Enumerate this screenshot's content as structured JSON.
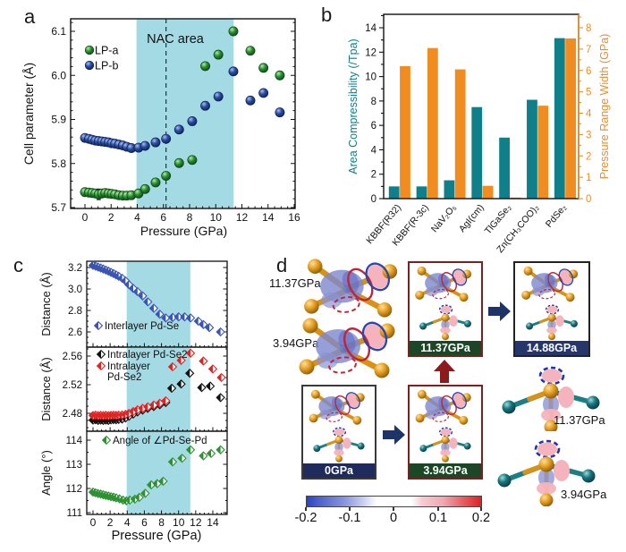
{
  "panel_letters": {
    "a": "a",
    "b": "b",
    "c": "c",
    "d": "d"
  },
  "chart_data": [
    {
      "id": "a",
      "type": "scatter",
      "annotation": "NAC area",
      "xlabel": "Pressure (GPa)",
      "ylabel": "Cell parameter (Å)",
      "xticks": [
        0,
        2,
        4,
        6,
        8,
        10,
        12,
        14,
        16
      ],
      "yticks": [
        "5.7",
        "5.8",
        "5.9",
        "6.0",
        "6.1"
      ],
      "xlim": [
        -1.1,
        16.1
      ],
      "ylim": [
        5.695,
        6.13
      ],
      "band_x": [
        3.94,
        11.37
      ],
      "band_color": "#a3dae3",
      "dashed_x": 6.2,
      "legend_position": "upper-left",
      "series": [
        {
          "name": "LP-a",
          "color": "#2e9133",
          "edge": "#0d4716",
          "grad": "gLPa",
          "points": [
            [
              0,
              5.735
            ],
            [
              0.3,
              5.734
            ],
            [
              0.55,
              5.733
            ],
            [
              0.8,
              5.732
            ],
            [
              1.05,
              5.73,
              0.012
            ],
            [
              1.3,
              5.732
            ],
            [
              1.55,
              5.733
            ],
            [
              1.8,
              5.732
            ],
            [
              2.05,
              5.731
            ],
            [
              2.3,
              5.73
            ],
            [
              2.6,
              5.728
            ],
            [
              2.9,
              5.727
            ],
            [
              3.2,
              5.727
            ],
            [
              3.55,
              5.728
            ],
            [
              4.1,
              5.732
            ],
            [
              4.6,
              5.742
            ],
            [
              5.4,
              5.757
            ],
            [
              6.2,
              5.772
            ],
            [
              7.2,
              5.801
            ],
            [
              8.2,
              5.808
            ],
            [
              9.2,
              6.021
            ],
            [
              10.2,
              6.047
            ],
            [
              11.35,
              6.1
            ],
            [
              12.65,
              6.056
            ],
            [
              13.65,
              6.017
            ],
            [
              14.9,
              6.0
            ]
          ]
        },
        {
          "name": "LP-b",
          "color": "#2c4fa3",
          "edge": "#0e2258",
          "grad": "gLPb",
          "points": [
            [
              0,
              5.858
            ],
            [
              0.3,
              5.856
            ],
            [
              0.55,
              5.854
            ],
            [
              0.8,
              5.852
            ],
            [
              1.05,
              5.851
            ],
            [
              1.3,
              5.85
            ],
            [
              1.55,
              5.849
            ],
            [
              1.8,
              5.848
            ],
            [
              2.05,
              5.846
            ],
            [
              2.3,
              5.845
            ],
            [
              2.6,
              5.843
            ],
            [
              2.9,
              5.841
            ],
            [
              3.2,
              5.838
            ],
            [
              3.55,
              5.835
            ],
            [
              4.1,
              5.836
            ],
            [
              4.6,
              5.84
            ],
            [
              5.4,
              5.848
            ],
            [
              6.2,
              5.856
            ],
            [
              7.2,
              5.877
            ],
            [
              8.2,
              5.896
            ],
            [
              9.2,
              5.931
            ],
            [
              10.2,
              5.952
            ],
            [
              11.35,
              6.009
            ],
            [
              12.65,
              5.943
            ],
            [
              13.65,
              5.96
            ],
            [
              14.9,
              5.916
            ]
          ]
        }
      ]
    },
    {
      "id": "b",
      "type": "bar",
      "categories": [
        "KBBF(R32)",
        "KBBF(R-3c)",
        "NaV₂O₅",
        "AgI(cm)",
        "TlGaSe₂",
        "Zn(CH₃COO)₂",
        "PdSe₂"
      ],
      "series": [
        {
          "name": "Area Compressibility (/Tpa)",
          "axis": "left",
          "color": "#0f7f8a",
          "values": [
            1.0,
            1.0,
            1.5,
            7.5,
            5.0,
            8.1,
            13.15
          ]
        },
        {
          "name": "Pressure Range Width (GPa)",
          "axis": "right",
          "color": "#f18c21",
          "values": [
            6.2,
            7.05,
            6.05,
            0.6,
            0.05,
            4.35,
            7.5
          ]
        }
      ],
      "left_axis": {
        "label": "Area Compressibility (/Tpa)",
        "ticks": [
          0,
          2,
          4,
          6,
          8,
          10,
          12,
          14
        ],
        "lim": [
          0,
          15.1
        ]
      },
      "right_axis": {
        "label": "Pressure Range Width (GPa)",
        "ticks": [
          0,
          1,
          2,
          3,
          4,
          5,
          6,
          7,
          8
        ],
        "lim": [
          0,
          8.63
        ]
      },
      "grid": false,
      "legend_position": "none"
    },
    {
      "id": "c",
      "type": "scatter-stack",
      "xlabel": "Pressure (GPa)",
      "xticks": [
        0,
        2,
        4,
        6,
        8,
        10,
        12,
        14
      ],
      "xlim": [
        -0.75,
        15.7
      ],
      "band_x": [
        3.94,
        11.37
      ],
      "band_color": "#a3dae3",
      "subplots": [
        {
          "ylabel": "Distance (Å)",
          "yticks": [
            "3.2",
            "3.0",
            "2.8",
            "2.6"
          ],
          "ylim": [
            2.458,
            3.258
          ],
          "series": [
            {
              "name": "Interlayer Pd-Se",
              "color": "#3a55b4",
              "points": [
                [
                  0,
                  3.22
                ],
                [
                  0.3,
                  3.212
                ],
                [
                  0.6,
                  3.204
                ],
                [
                  0.9,
                  3.195
                ],
                [
                  1.2,
                  3.186
                ],
                [
                  1.5,
                  3.176
                ],
                [
                  1.8,
                  3.166
                ],
                [
                  2.1,
                  3.155
                ],
                [
                  2.4,
                  3.143
                ],
                [
                  2.7,
                  3.131
                ],
                [
                  3.0,
                  3.118
                ],
                [
                  3.4,
                  3.1
                ],
                [
                  3.8,
                  3.075
                ],
                [
                  4.2,
                  3.04
                ],
                [
                  4.7,
                  3.005
                ],
                [
                  5.2,
                  2.975
                ],
                [
                  5.8,
                  2.935
                ],
                [
                  6.4,
                  2.88
                ],
                [
                  7.1,
                  2.82
                ],
                [
                  7.8,
                  2.765
                ],
                [
                  8.5,
                  2.73
                ],
                [
                  9.3,
                  2.735
                ],
                [
                  10.0,
                  2.74
                ],
                [
                  10.7,
                  2.74
                ],
                [
                  11.4,
                  2.73
                ],
                [
                  12.3,
                  2.7
                ],
                [
                  12.9,
                  2.668
                ],
                [
                  13.6,
                  2.64
                ],
                [
                  14.9,
                  2.6
                ]
              ]
            }
          ]
        },
        {
          "ylabel": "Distance (Å)",
          "yticks": [
            "2.56",
            "2.52",
            "2.48"
          ],
          "ylim": [
            2.455,
            2.5725
          ],
          "series": [
            {
              "name": "Intralayer Pd-Se2",
              "color": "#111111",
              "points": [
                [
                  0,
                  2.4705
                ],
                [
                  0.3,
                  2.471
                ],
                [
                  0.6,
                  2.47
                ],
                [
                  0.9,
                  2.4705
                ],
                [
                  1.2,
                  2.47
                ],
                [
                  1.5,
                  2.4705
                ],
                [
                  1.8,
                  2.47
                ],
                [
                  2.1,
                  2.4708
                ],
                [
                  2.4,
                  2.4712
                ],
                [
                  2.7,
                  2.471
                ],
                [
                  3.0,
                  2.4715
                ],
                [
                  3.4,
                  2.472
                ],
                [
                  3.8,
                  2.4735
                ],
                [
                  4.2,
                  2.476
                ],
                [
                  4.7,
                  2.479
                ],
                [
                  5.2,
                  2.482
                ],
                [
                  5.8,
                  2.4845
                ],
                [
                  6.4,
                  2.487
                ],
                [
                  7.1,
                  2.4895
                ],
                [
                  7.8,
                  2.492
                ],
                [
                  8.5,
                  2.495
                ],
                [
                  9.2,
                  2.515
                ],
                [
                  10.3,
                  2.521
                ],
                [
                  11.3,
                  2.536
                ],
                [
                  12.7,
                  2.516
                ],
                [
                  13.7,
                  2.518
                ],
                [
                  14.9,
                  2.502
                ]
              ]
            },
            {
              "name": "Intralayer Pd-Se2",
              "wrap": [
                "Intralayer",
                "Pd-Se2"
              ],
              "color": "#e02424",
              "points": [
                [
                  0,
                  2.477
                ],
                [
                  0.3,
                  2.4775
                ],
                [
                  0.6,
                  2.4768
                ],
                [
                  0.9,
                  2.4772
                ],
                [
                  1.2,
                  2.4768
                ],
                [
                  1.5,
                  2.4772
                ],
                [
                  1.8,
                  2.4768
                ],
                [
                  2.1,
                  2.4772
                ],
                [
                  2.4,
                  2.4775
                ],
                [
                  2.7,
                  2.4772
                ],
                [
                  3.0,
                  2.4775
                ],
                [
                  3.4,
                  2.4778
                ],
                [
                  3.8,
                  2.4785
                ],
                [
                  4.2,
                  2.48
                ],
                [
                  4.7,
                  2.4825
                ],
                [
                  5.2,
                  2.485
                ],
                [
                  5.8,
                  2.487
                ],
                [
                  6.4,
                  2.489
                ],
                [
                  7.1,
                  2.4915
                ],
                [
                  7.8,
                  2.494
                ],
                [
                  8.5,
                  2.4975
                ],
                [
                  9.3,
                  2.545
                ],
                [
                  10.3,
                  2.554
                ],
                [
                  11.4,
                  2.564
                ],
                [
                  12.9,
                  2.553
                ],
                [
                  14.0,
                  2.542
                ],
                [
                  15.0,
                  2.53
                ]
              ]
            }
          ]
        },
        {
          "ylabel": "Angle (°)",
          "yticks": [
            "114",
            "113",
            "112",
            "111"
          ],
          "ylim": [
            110.93,
            114.37
          ],
          "series": [
            {
              "name": "Angle of ∠Pd-Se-Pd",
              "color": "#2e9133",
              "points": [
                [
                  0,
                  111.85
                ],
                [
                  0.3,
                  111.82
                ],
                [
                  0.6,
                  111.79
                ],
                [
                  0.9,
                  111.77
                ],
                [
                  1.2,
                  111.74
                ],
                [
                  1.5,
                  111.71
                ],
                [
                  1.8,
                  111.69
                ],
                [
                  2.1,
                  111.66
                ],
                [
                  2.4,
                  111.64
                ],
                [
                  2.7,
                  111.61
                ],
                [
                  3.1,
                  111.57
                ],
                [
                  3.5,
                  111.52
                ],
                [
                  3.9,
                  111.49
                ],
                [
                  4.3,
                  111.52
                ],
                [
                  4.9,
                  111.56
                ],
                [
                  5.4,
                  111.63
                ],
                [
                  6.1,
                  111.8
                ],
                [
                  6.8,
                  112.15
                ],
                [
                  7.5,
                  112.2
                ],
                [
                  8.2,
                  112.3
                ],
                [
                  9.3,
                  113.1
                ],
                [
                  10.4,
                  113.25
                ],
                [
                  11.4,
                  113.6
                ],
                [
                  12.9,
                  113.35
                ],
                [
                  13.8,
                  113.45
                ],
                [
                  14.9,
                  113.6
                ]
              ]
            }
          ]
        }
      ]
    }
  ],
  "panel_d": {
    "left_molecule_labels": [
      "11.37GPa",
      "3.94GPa"
    ],
    "right_molecule_labels": [
      "11.37GPa",
      "3.94GPa"
    ],
    "boxes": [
      {
        "label": "0GPa",
        "border": "#3a3a3a",
        "label_bg": "#1f2b5b"
      },
      {
        "label": "3.94GPa",
        "border": "#7e1f1f",
        "label_bg": "#1c4726"
      },
      {
        "label": "11.37GPa",
        "border": "#7e1f1f",
        "label_bg": "#1c4726"
      },
      {
        "label": "14.88GPa",
        "border": "#222222",
        "label_bg": "#24366b"
      }
    ],
    "colorbar": {
      "ticks": [
        "-0.2",
        "-0.1",
        "0",
        "0.1",
        "0.2"
      ],
      "min_color": "#2743c4",
      "mid_color": "#ffffff",
      "max_color": "#e01f21"
    },
    "atom_colors": {
      "gold": "#e8a226",
      "teal": "#19767e"
    },
    "annotation_colors": {
      "ellipse_red": "#c22433",
      "ellipse_blue": "#2b46ae",
      "blob_blue": "#7d87cf",
      "blob_pink": "#f5b4bd"
    },
    "arrow_colors": {
      "navy": "#1d3468",
      "dark_red": "#8e1b1b"
    }
  }
}
